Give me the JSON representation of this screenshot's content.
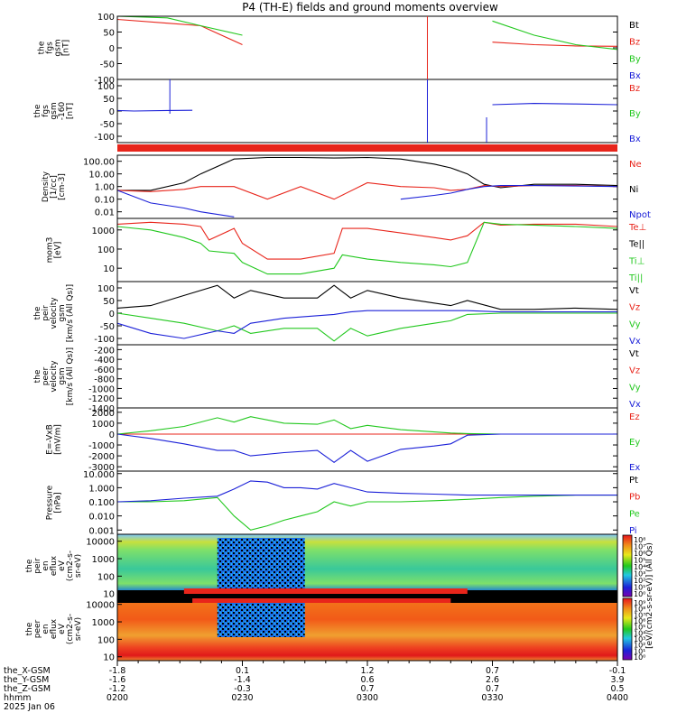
{
  "title": "P4 (TH-E) fields and ground moments overview",
  "colors": {
    "black": "#000000",
    "red": "#e8251b",
    "green": "#22c81e",
    "blue": "#1b20d8"
  },
  "chart_data": [
    {
      "type": "line",
      "ylabel": [
        "the",
        "fgs",
        "gsm",
        "[nT]"
      ],
      "yticks": [
        100,
        50,
        0,
        -50,
        -100
      ],
      "ylim": [
        -100,
        100
      ],
      "legend": [
        {
          "label": "Bt",
          "color": "black"
        },
        {
          "label": "Bz",
          "color": "red"
        },
        {
          "label": "By",
          "color": "green"
        },
        {
          "label": "Bx",
          "color": "blue"
        }
      ],
      "x": [
        0,
        6,
        10,
        15,
        20,
        24,
        26,
        30,
        42,
        45,
        50,
        55,
        60
      ],
      "series": [
        {
          "name": "Bz",
          "color": "red",
          "values": [
            90,
            78,
            70,
            10,
            null,
            null,
            null,
            null,
            null,
            18,
            10,
            6,
            5
          ]
        },
        {
          "name": "By",
          "color": "green",
          "values": [
            100,
            95,
            70,
            40,
            null,
            null,
            null,
            null,
            null,
            85,
            40,
            10,
            -5
          ]
        }
      ]
    },
    {
      "type": "line",
      "ylabel": [
        "the",
        "fgs",
        "gsm",
        "-160",
        "[nT]"
      ],
      "yticks": [
        100,
        50,
        0,
        -50,
        -100
      ],
      "ylim": [
        -125,
        125
      ],
      "legend": [
        {
          "label": "Bz",
          "color": "red"
        },
        {
          "label": "By",
          "color": "green"
        },
        {
          "label": "Bx",
          "color": "blue"
        }
      ],
      "x": [
        0,
        2,
        6,
        9,
        42,
        45,
        50,
        55,
        60
      ],
      "series": [
        {
          "name": "Bx",
          "color": "blue",
          "values": [
            2,
            0,
            2,
            3,
            null,
            25,
            30,
            28,
            25
          ]
        }
      ]
    },
    {
      "type": "line",
      "ylabel": [
        "Density",
        "[1/cc]",
        "[cm-3]"
      ],
      "yticks": [
        "100.00",
        "10.00",
        "1.00",
        "0.10",
        "0.01"
      ],
      "log": true,
      "ylim": [
        0.003,
        300
      ],
      "legend": [
        {
          "label": "Ne",
          "color": "red"
        },
        {
          "label": "Ni",
          "color": "black"
        },
        {
          "label": "Npot",
          "color": "blue"
        }
      ],
      "x": [
        0,
        4,
        8,
        10,
        14,
        18,
        22,
        26,
        30,
        34,
        38,
        40,
        42,
        44,
        46,
        50,
        55,
        60
      ],
      "series": [
        {
          "name": "Ni",
          "color": "black",
          "values": [
            0.5,
            0.5,
            2,
            10,
            150,
            200,
            200,
            180,
            200,
            150,
            60,
            30,
            10,
            1.5,
            0.8,
            1.5,
            1.5,
            1.2
          ]
        },
        {
          "name": "Ne",
          "color": "red",
          "values": [
            0.5,
            0.4,
            0.6,
            1,
            1,
            0.1,
            1,
            0.1,
            2,
            1,
            0.8,
            0.5,
            0.6,
            1.2,
            1.0,
            1.2,
            1.2,
            1.0
          ]
        },
        {
          "name": "Npot",
          "color": "blue",
          "values": [
            0.5,
            0.05,
            0.02,
            0.01,
            0.004,
            null,
            null,
            null,
            null,
            0.1,
            0.2,
            0.3,
            0.6,
            1,
            1.2,
            1.2,
            1.1,
            1.0
          ]
        }
      ]
    },
    {
      "type": "line",
      "ylabel": [
        "mom3",
        "[eV]"
      ],
      "yticks": [
        1000,
        100,
        10
      ],
      "log": true,
      "ylim": [
        2,
        4000
      ],
      "legend": [
        {
          "label": "Te⊥",
          "color": "red"
        },
        {
          "label": "Te||",
          "color": "black"
        },
        {
          "label": "Ti⊥",
          "color": "green"
        },
        {
          "label": "Ti||",
          "color": "green"
        }
      ],
      "x": [
        0,
        4,
        8,
        10,
        11,
        14,
        15,
        18,
        22,
        26,
        27,
        30,
        34,
        38,
        40,
        42,
        44,
        46,
        50,
        55,
        60
      ],
      "series": [
        {
          "name": "Te⊥",
          "color": "red",
          "values": [
            2000,
            2500,
            2000,
            1500,
            300,
            1200,
            200,
            30,
            30,
            60,
            1200,
            1200,
            700,
            400,
            300,
            500,
            2500,
            1800,
            2000,
            2000,
            1500
          ]
        },
        {
          "name": "Ti⊥",
          "color": "green",
          "values": [
            1500,
            1000,
            400,
            200,
            80,
            60,
            20,
            5,
            5,
            10,
            50,
            30,
            20,
            15,
            12,
            20,
            2500,
            2000,
            1800,
            1500,
            1200
          ]
        }
      ]
    },
    {
      "type": "line",
      "ylabel": [
        "the",
        "peir",
        "velocity",
        "gsm",
        "[km/s (All Qs)]"
      ],
      "yticks": [
        100,
        50,
        0,
        -50,
        -100
      ],
      "ylim": [
        -125,
        125
      ],
      "legend": [
        {
          "label": "Vt",
          "color": "black"
        },
        {
          "label": "Vz",
          "color": "red"
        },
        {
          "label": "Vy",
          "color": "green"
        },
        {
          "label": "Vx",
          "color": "blue"
        }
      ],
      "x": [
        0,
        4,
        8,
        12,
        14,
        16,
        20,
        24,
        26,
        28,
        30,
        34,
        38,
        40,
        42,
        46,
        50,
        55,
        60
      ],
      "series": [
        {
          "name": "Vt",
          "color": "black",
          "values": [
            20,
            30,
            70,
            110,
            60,
            90,
            60,
            60,
            110,
            60,
            90,
            60,
            40,
            30,
            50,
            15,
            15,
            20,
            15
          ]
        },
        {
          "name": "Vy",
          "color": "green",
          "values": [
            0,
            -20,
            -40,
            -70,
            -50,
            -80,
            -60,
            -60,
            -110,
            -60,
            -90,
            -60,
            -40,
            -30,
            -5,
            0,
            0,
            0,
            0
          ]
        },
        {
          "name": "Vx",
          "color": "blue",
          "values": [
            -40,
            -80,
            -100,
            -70,
            -80,
            -40,
            -20,
            -10,
            -5,
            5,
            10,
            10,
            10,
            10,
            10,
            5,
            5,
            5,
            5
          ]
        }
      ]
    },
    {
      "type": "line",
      "ylabel": [
        "the",
        "peer",
        "velocity",
        "gsm",
        "[km/s (All Qs)]"
      ],
      "yticks": [
        -200,
        -400,
        -600,
        -800,
        -1000,
        -1200,
        -1400
      ],
      "ylim": [
        -1400,
        -100
      ],
      "legend": [
        {
          "label": "Vt",
          "color": "black"
        },
        {
          "label": "Vz",
          "color": "red"
        },
        {
          "label": "Vy",
          "color": "green"
        },
        {
          "label": "Vx",
          "color": "blue"
        }
      ],
      "x": [],
      "series": []
    },
    {
      "type": "line",
      "ylabel": [
        "E=-VxB",
        "[mV/m]"
      ],
      "yticks": [
        2000,
        1000,
        0,
        -1000,
        -2000,
        -3000
      ],
      "ylim": [
        -3400,
        2400
      ],
      "legend": [
        {
          "label": "Ez",
          "color": "red"
        },
        {
          "label": "Ey",
          "color": "green"
        },
        {
          "label": "Ex",
          "color": "blue"
        }
      ],
      "x": [
        0,
        4,
        8,
        12,
        14,
        16,
        20,
        24,
        26,
        28,
        30,
        34,
        38,
        40,
        42,
        46,
        50,
        55,
        60
      ],
      "series": [
        {
          "name": "Ez",
          "color": "red",
          "values": [
            0,
            0,
            0,
            0,
            0,
            0,
            0,
            0,
            0,
            0,
            0,
            0,
            0,
            0,
            0,
            0,
            0,
            0,
            0
          ]
        },
        {
          "name": "Ey",
          "color": "green",
          "values": [
            0,
            300,
            700,
            1500,
            1100,
            1600,
            1000,
            900,
            1300,
            500,
            800,
            400,
            200,
            100,
            50,
            0,
            0,
            0,
            0
          ]
        },
        {
          "name": "Ex",
          "color": "blue",
          "values": [
            0,
            -400,
            -900,
            -1500,
            -1500,
            -2000,
            -1700,
            -1500,
            -2600,
            -1500,
            -2500,
            -1400,
            -1100,
            -900,
            -100,
            0,
            0,
            0,
            0
          ]
        }
      ]
    },
    {
      "type": "line",
      "ylabel": [
        "Pressure",
        "[nPa]"
      ],
      "yticks": [
        "10.000",
        "1.000",
        "0.100",
        "0.010",
        "0.001"
      ],
      "log": true,
      "ylim": [
        0.0005,
        15
      ],
      "legend": [
        {
          "label": "Pt",
          "color": "black"
        },
        {
          "label": "Pb",
          "color": "red"
        },
        {
          "label": "Pe",
          "color": "green"
        },
        {
          "label": "Pi",
          "color": "blue"
        }
      ],
      "x": [
        0,
        4,
        8,
        12,
        14,
        16,
        18,
        20,
        22,
        24,
        26,
        28,
        30,
        34,
        38,
        42,
        46,
        50,
        55,
        60
      ],
      "series": [
        {
          "name": "Pe",
          "color": "green",
          "values": [
            0.1,
            0.1,
            0.12,
            0.2,
            0.01,
            0.001,
            0.002,
            0.005,
            0.01,
            0.02,
            0.1,
            0.05,
            0.1,
            0.1,
            0.12,
            0.15,
            0.2,
            0.25,
            0.3,
            0.3
          ]
        },
        {
          "name": "Pi",
          "color": "blue",
          "values": [
            0.1,
            0.12,
            0.18,
            0.25,
            0.8,
            3,
            2.5,
            1,
            1,
            0.8,
            2,
            1,
            0.5,
            0.4,
            0.35,
            0.3,
            0.3,
            0.3,
            0.3,
            0.3
          ]
        }
      ]
    },
    {
      "type": "heatmap",
      "ylabel": [
        "the",
        "peir",
        "en",
        "eflux",
        "eV",
        "(cm2-s-",
        "sr-eV)"
      ],
      "yticks": [
        10000,
        1000,
        100,
        10
      ],
      "colorbar_ticks": [
        "10⁸",
        "10⁷",
        "10⁶",
        "10⁵",
        "10⁴",
        "10³",
        "10²",
        "10¹",
        "10⁰"
      ],
      "colorbar_label": "(All Qs)"
    },
    {
      "type": "heatmap",
      "ylabel": [
        "the",
        "peer",
        "en",
        "eflux",
        "eV",
        "(cm2-s-",
        "sr-eV)"
      ],
      "yticks": [
        10000,
        1000,
        100,
        10
      ],
      "colorbar_ticks": [
        "10⁹",
        "10⁸",
        "10⁷",
        "10⁶",
        "10⁵",
        "10⁴",
        "10³",
        "10²",
        "10¹",
        "10⁰"
      ],
      "colorbar_label": "[eV/(cm2-s-sr-eV)]"
    }
  ],
  "x_axis": {
    "row_labels": [
      "the_X-GSM",
      "the_Y-GSM",
      "the_Z-GSM",
      "hhmm",
      "2025 Jan 06"
    ],
    "ticks": [
      {
        "hhmm": "0200",
        "x_gsm": "-1.8",
        "y_gsm": "-1.6",
        "z_gsm": "-1.2"
      },
      {
        "hhmm": "0230",
        "x_gsm": "0.1",
        "y_gsm": "-1.4",
        "z_gsm": "-0.3"
      },
      {
        "hhmm": "0300",
        "x_gsm": "1.2",
        "y_gsm": "0.6",
        "z_gsm": "0.7"
      },
      {
        "hhmm": "0330",
        "x_gsm": "0.7",
        "y_gsm": "2.6",
        "z_gsm": "0.7"
      },
      {
        "hhmm": "0400",
        "x_gsm": "-0.1",
        "y_gsm": "3.9",
        "z_gsm": "0.5"
      }
    ]
  }
}
